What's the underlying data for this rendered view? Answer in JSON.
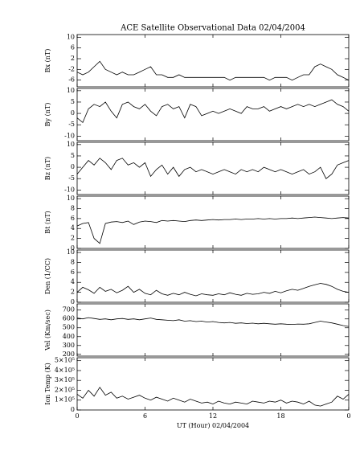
{
  "chart_data": [
    {
      "type": "line",
      "title": "ACE Satellite Observational Data   02/04/2004",
      "ylabel": "Bx (nT)",
      "color": "#000000",
      "x": [
        0,
        0.5,
        1,
        1.5,
        2,
        2.5,
        3,
        3.5,
        4,
        4.5,
        5,
        5.5,
        6,
        6.5,
        7,
        7.5,
        8,
        8.5,
        9,
        9.5,
        10,
        10.5,
        11,
        11.5,
        12,
        12.5,
        13,
        13.5,
        14,
        14.5,
        15,
        15.5,
        16,
        16.5,
        17,
        17.5,
        18,
        18.5,
        19,
        19.5,
        20,
        20.5,
        21,
        21.5,
        22,
        22.5,
        23,
        23.5,
        24
      ],
      "values": [
        -3,
        -4,
        -3,
        -1,
        1,
        -2,
        -3,
        -4,
        -3,
        -4,
        -4,
        -3,
        -2,
        -1,
        -4,
        -4,
        -5,
        -5,
        -4,
        -5,
        -5,
        -5,
        -5,
        -5,
        -5,
        -5,
        -5,
        -6,
        -5,
        -5,
        -5,
        -5,
        -5,
        -5,
        -6,
        -5,
        -5,
        -5,
        -6,
        -5,
        -4,
        -4,
        -1,
        0,
        -1,
        -2,
        -4,
        -5,
        -6
      ],
      "xlim": [
        0,
        24
      ],
      "xticks": [
        0,
        6,
        12,
        18,
        {
          "value": 24,
          "label": "0"
        }
      ],
      "ylim": [
        -8.5,
        11
      ],
      "yticks": [
        10,
        6,
        2,
        -2,
        -6
      ]
    },
    {
      "type": "line",
      "ylabel": "By (nT)",
      "color": "#000000",
      "x": [
        0,
        0.5,
        1,
        1.5,
        2,
        2.5,
        3,
        3.5,
        4,
        4.5,
        5,
        5.5,
        6,
        6.5,
        7,
        7.5,
        8,
        8.5,
        9,
        9.5,
        10,
        10.5,
        11,
        11.5,
        12,
        12.5,
        13,
        13.5,
        14,
        14.5,
        15,
        15.5,
        16,
        16.5,
        17,
        17.5,
        18,
        18.5,
        19,
        19.5,
        20,
        20.5,
        21,
        21.5,
        22,
        22.5,
        23,
        23.5,
        24
      ],
      "values": [
        -2,
        -4,
        2,
        4,
        3,
        5,
        1,
        -2,
        4,
        5,
        3,
        2,
        4,
        1,
        -1,
        3,
        4,
        2,
        3,
        -2,
        4,
        3,
        -1,
        0,
        1,
        0,
        1,
        2,
        1,
        0,
        3,
        2,
        2,
        3,
        1,
        2,
        3,
        2,
        3,
        4,
        3,
        4,
        3,
        4,
        5,
        6,
        4,
        3,
        1
      ],
      "xlim": [
        0,
        24
      ],
      "xticks": [
        0,
        6,
        12,
        18,
        {
          "value": 24,
          "label": "0"
        }
      ],
      "ylim": [
        -12,
        11
      ],
      "yticks": [
        10,
        5,
        0,
        -5,
        -10
      ]
    },
    {
      "type": "line",
      "ylabel": "Bz (nT)",
      "color": "#000000",
      "x": [
        0,
        0.5,
        1,
        1.5,
        2,
        2.5,
        3,
        3.5,
        4,
        4.5,
        5,
        5.5,
        6,
        6.5,
        7,
        7.5,
        8,
        8.5,
        9,
        9.5,
        10,
        10.5,
        11,
        11.5,
        12,
        12.5,
        13,
        13.5,
        14,
        14.5,
        15,
        15.5,
        16,
        16.5,
        17,
        17.5,
        18,
        18.5,
        19,
        19.5,
        20,
        20.5,
        21,
        21.5,
        22,
        22.5,
        23,
        23.5,
        24
      ],
      "values": [
        -3,
        0,
        3,
        1,
        4,
        2,
        -1,
        3,
        4,
        1,
        2,
        0,
        2,
        -4,
        -1,
        1,
        -3,
        0,
        -4,
        -1,
        0,
        -2,
        -1,
        -2,
        -3,
        -2,
        -1,
        -2,
        -3,
        -1,
        -2,
        -1,
        -2,
        0,
        -1,
        -2,
        -1,
        -2,
        -3,
        -2,
        -1,
        -3,
        -2,
        0,
        -5,
        -3,
        1,
        2,
        3
      ],
      "xlim": [
        0,
        24
      ],
      "xticks": [
        0,
        6,
        12,
        18,
        {
          "value": 24,
          "label": "0"
        }
      ],
      "ylim": [
        -12,
        11
      ],
      "yticks": [
        10,
        5,
        0,
        -5,
        -10
      ]
    },
    {
      "type": "line",
      "ylabel": "Bt (nT)",
      "color": "#000000",
      "x": [
        0,
        0.5,
        1,
        1.5,
        2,
        2.5,
        3,
        3.5,
        4,
        4.5,
        5,
        5.5,
        6,
        6.5,
        7,
        7.5,
        8,
        8.5,
        9,
        9.5,
        10,
        10.5,
        11,
        11.5,
        12,
        12.5,
        13,
        13.5,
        14,
        14.5,
        15,
        15.5,
        16,
        16.5,
        17,
        17.5,
        18,
        18.5,
        19,
        19.5,
        20,
        20.5,
        21,
        21.5,
        22,
        22.5,
        23,
        23.5,
        24
      ],
      "values": [
        4.5,
        5,
        5.2,
        2,
        1,
        5,
        5.3,
        5.4,
        5.2,
        5.5,
        4.8,
        5.3,
        5.5,
        5.4,
        5.2,
        5.6,
        5.5,
        5.6,
        5.5,
        5.4,
        5.6,
        5.7,
        5.6,
        5.7,
        5.8,
        5.7,
        5.8,
        5.8,
        5.9,
        5.8,
        5.9,
        5.9,
        6,
        5.9,
        6,
        5.9,
        6,
        6,
        6.1,
        6,
        6.1,
        6.2,
        6.3,
        6.2,
        6.1,
        6,
        6.1,
        6.2,
        6.1
      ],
      "xlim": [
        0,
        24
      ],
      "xticks": [
        0,
        6,
        12,
        18,
        {
          "value": 24,
          "label": "0"
        }
      ],
      "ylim": [
        0,
        10.5
      ],
      "yticks": [
        10,
        8,
        6,
        4,
        2,
        0
      ]
    },
    {
      "type": "line",
      "ylabel": "Den (1/CC)",
      "color": "#000000",
      "x": [
        0,
        0.5,
        1,
        1.5,
        2,
        2.5,
        3,
        3.5,
        4,
        4.5,
        5,
        5.5,
        6,
        6.5,
        7,
        7.5,
        8,
        8.5,
        9,
        9.5,
        10,
        10.5,
        11,
        11.5,
        12,
        12.5,
        13,
        13.5,
        14,
        14.5,
        15,
        15.5,
        16,
        16.5,
        17,
        17.5,
        18,
        18.5,
        19,
        19.5,
        20,
        20.5,
        21,
        21.5,
        22,
        22.5,
        23,
        23.5,
        24
      ],
      "values": [
        2,
        3,
        2.5,
        1.8,
        3,
        2.2,
        2.6,
        1.9,
        2.4,
        3.2,
        2,
        2.6,
        1.8,
        1.5,
        2.4,
        1.7,
        1.4,
        1.8,
        1.5,
        2,
        1.6,
        1.3,
        1.7,
        1.5,
        1.4,
        1.7,
        1.5,
        1.9,
        1.6,
        1.4,
        1.8,
        1.6,
        1.7,
        2,
        1.8,
        2.2,
        1.9,
        2.3,
        2.6,
        2.4,
        2.8,
        3.2,
        3.5,
        3.8,
        3.6,
        3.2,
        2.6,
        2.2,
        2
      ],
      "xlim": [
        0,
        24
      ],
      "xticks": [
        0,
        6,
        12,
        18,
        {
          "value": 24,
          "label": "0"
        }
      ],
      "ylim": [
        0,
        10.5
      ],
      "yticks": [
        10,
        8,
        6,
        4,
        2,
        0
      ]
    },
    {
      "type": "line",
      "ylabel": "Vel (Km/sec)",
      "color": "#000000",
      "x": [
        0,
        0.5,
        1,
        1.5,
        2,
        2.5,
        3,
        3.5,
        4,
        4.5,
        5,
        5.5,
        6,
        6.5,
        7,
        7.5,
        8,
        8.5,
        9,
        9.5,
        10,
        10.5,
        11,
        11.5,
        12,
        12.5,
        13,
        13.5,
        14,
        14.5,
        15,
        15.5,
        16,
        16.5,
        17,
        17.5,
        18,
        18.5,
        19,
        19.5,
        20,
        20.5,
        21,
        21.5,
        22,
        22.5,
        23,
        23.5,
        24
      ],
      "values": [
        610,
        600,
        615,
        605,
        595,
        600,
        590,
        600,
        605,
        595,
        600,
        590,
        600,
        610,
        595,
        590,
        585,
        580,
        590,
        575,
        580,
        570,
        575,
        565,
        570,
        560,
        555,
        560,
        550,
        555,
        548,
        552,
        545,
        550,
        545,
        540,
        545,
        540,
        538,
        542,
        540,
        545,
        560,
        575,
        565,
        555,
        540,
        525,
        515
      ],
      "xlim": [
        0,
        24
      ],
      "xticks": [
        0,
        6,
        12,
        18,
        {
          "value": 24,
          "label": "0"
        }
      ],
      "ylim": [
        180,
        770
      ],
      "yticks": [
        700,
        600,
        500,
        400,
        300,
        200
      ]
    },
    {
      "type": "line",
      "ylabel": "Ion Temp (K)",
      "xlabel": "UT (Hour)   02/04/2004",
      "color": "#000000",
      "x": [
        0,
        0.5,
        1,
        1.5,
        2,
        2.5,
        3,
        3.5,
        4,
        4.5,
        5,
        5.5,
        6,
        6.5,
        7,
        7.5,
        8,
        8.5,
        9,
        9.5,
        10,
        10.5,
        11,
        11.5,
        12,
        12.5,
        13,
        13.5,
        14,
        14.5,
        15,
        15.5,
        16,
        16.5,
        17,
        17.5,
        18,
        18.5,
        19,
        19.5,
        20,
        20.5,
        21,
        21.5,
        22,
        22.5,
        23,
        23.5,
        24
      ],
      "values": [
        160000,
        120000,
        200000,
        140000,
        230000,
        150000,
        180000,
        120000,
        140000,
        110000,
        130000,
        150000,
        120000,
        100000,
        130000,
        110000,
        90000,
        120000,
        100000,
        80000,
        110000,
        90000,
        70000,
        80000,
        60000,
        90000,
        70000,
        60000,
        80000,
        70000,
        60000,
        90000,
        80000,
        70000,
        90000,
        80000,
        100000,
        70000,
        90000,
        80000,
        60000,
        90000,
        50000,
        40000,
        60000,
        80000,
        140000,
        110000,
        160000
      ],
      "xlim": [
        0,
        24
      ],
      "xticks": [
        0,
        6,
        12,
        18,
        {
          "value": 24,
          "label": "0"
        }
      ],
      "ylim": [
        0,
        530000
      ],
      "yticks": [
        {
          "value": 500000,
          "label": "5×10⁵"
        },
        {
          "value": 400000,
          "label": "4×10⁵"
        },
        {
          "value": 300000,
          "label": "3×10⁵"
        },
        {
          "value": 200000,
          "label": "2×10⁵"
        },
        {
          "value": 100000,
          "label": "1×10⁵"
        },
        0
      ]
    }
  ]
}
